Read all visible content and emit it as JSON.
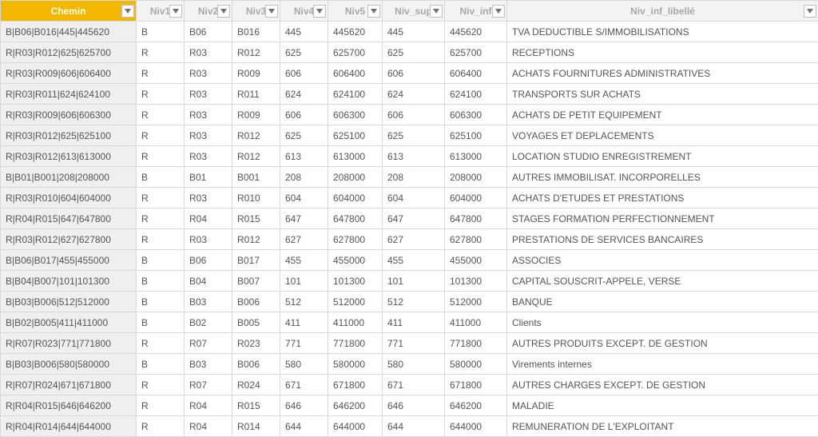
{
  "columns": [
    {
      "key": "chemin",
      "label": "Chemin",
      "highlight": true
    },
    {
      "key": "niv1",
      "label": "Niv1",
      "highlight": false
    },
    {
      "key": "niv2",
      "label": "Niv2",
      "highlight": false
    },
    {
      "key": "niv3",
      "label": "Niv3",
      "highlight": false
    },
    {
      "key": "niv4",
      "label": "Niv4",
      "highlight": false
    },
    {
      "key": "niv5",
      "label": "Niv5",
      "highlight": false
    },
    {
      "key": "niv_sup",
      "label": "Niv_sup",
      "highlight": false
    },
    {
      "key": "niv_inf",
      "label": "Niv_inf",
      "highlight": false
    },
    {
      "key": "niv_inf_libelle",
      "label": "Niv_inf_libellé",
      "highlight": false
    }
  ],
  "rows": [
    [
      "B|B06|B016|445|445620",
      "B",
      "B06",
      "B016",
      "445",
      "445620",
      "445",
      "445620",
      "TVA DEDUCTIBLE S/IMMOBILISATIONS"
    ],
    [
      "R|R03|R012|625|625700",
      "R",
      "R03",
      "R012",
      "625",
      "625700",
      "625",
      "625700",
      "RECEPTIONS"
    ],
    [
      "R|R03|R009|606|606400",
      "R",
      "R03",
      "R009",
      "606",
      "606400",
      "606",
      "606400",
      "ACHATS FOURNITURES ADMINISTRATIVES"
    ],
    [
      "R|R03|R011|624|624100",
      "R",
      "R03",
      "R011",
      "624",
      "624100",
      "624",
      "624100",
      "TRANSPORTS SUR ACHATS"
    ],
    [
      "R|R03|R009|606|606300",
      "R",
      "R03",
      "R009",
      "606",
      "606300",
      "606",
      "606300",
      "ACHATS DE PETIT EQUIPEMENT"
    ],
    [
      "R|R03|R012|625|625100",
      "R",
      "R03",
      "R012",
      "625",
      "625100",
      "625",
      "625100",
      "VOYAGES ET DEPLACEMENTS"
    ],
    [
      "R|R03|R012|613|613000",
      "R",
      "R03",
      "R012",
      "613",
      "613000",
      "613",
      "613000",
      "LOCATION STUDIO ENREGISTREMENT"
    ],
    [
      "B|B01|B001|208|208000",
      "B",
      "B01",
      "B001",
      "208",
      "208000",
      "208",
      "208000",
      "AUTRES IMMOBILISAT. INCORPORELLES"
    ],
    [
      "R|R03|R010|604|604000",
      "R",
      "R03",
      "R010",
      "604",
      "604000",
      "604",
      "604000",
      "ACHATS D'ETUDES ET PRESTATIONS"
    ],
    [
      "R|R04|R015|647|647800",
      "R",
      "R04",
      "R015",
      "647",
      "647800",
      "647",
      "647800",
      "STAGES FORMATION PERFECTIONNEMENT"
    ],
    [
      "R|R03|R012|627|627800",
      "R",
      "R03",
      "R012",
      "627",
      "627800",
      "627",
      "627800",
      "PRESTATIONS DE SERVICES BANCAIRES"
    ],
    [
      "B|B06|B017|455|455000",
      "B",
      "B06",
      "B017",
      "455",
      "455000",
      "455",
      "455000",
      "ASSOCIES"
    ],
    [
      "B|B04|B007|101|101300",
      "B",
      "B04",
      "B007",
      "101",
      "101300",
      "101",
      "101300",
      "CAPITAL SOUSCRIT-APPELE, VERSE"
    ],
    [
      "B|B03|B006|512|512000",
      "B",
      "B03",
      "B006",
      "512",
      "512000",
      "512",
      "512000",
      "BANQUE"
    ],
    [
      "B|B02|B005|411|411000",
      "B",
      "B02",
      "B005",
      "411",
      "411000",
      "411",
      "411000",
      "Clients"
    ],
    [
      "R|R07|R023|771|771800",
      "R",
      "R07",
      "R023",
      "771",
      "771800",
      "771",
      "771800",
      "AUTRES PRODUITS EXCEPT. DE GESTION"
    ],
    [
      "B|B03|B006|580|580000",
      "B",
      "B03",
      "B006",
      "580",
      "580000",
      "580",
      "580000",
      "Virements internes"
    ],
    [
      "R|R07|R024|671|671800",
      "R",
      "R07",
      "R024",
      "671",
      "671800",
      "671",
      "671800",
      "AUTRES CHARGES EXCEPT. DE GESTION"
    ],
    [
      "R|R04|R015|646|646200",
      "R",
      "R04",
      "R015",
      "646",
      "646200",
      "646",
      "646200",
      "MALADIE"
    ],
    [
      "R|R04|R014|644|644000",
      "R",
      "R04",
      "R014",
      "644",
      "644000",
      "644",
      "644000",
      "REMUNERATION DE L'EXPLOITANT"
    ]
  ],
  "colors": {
    "header_highlight_bg": "#f3b700",
    "header_highlight_fg": "#ffffff",
    "header_bg": "#f3f3f3",
    "header_fg": "#a8a8a8",
    "border": "#d8d8d8",
    "chemin_cell_bg": "#efefef",
    "arrow": "#707070"
  }
}
